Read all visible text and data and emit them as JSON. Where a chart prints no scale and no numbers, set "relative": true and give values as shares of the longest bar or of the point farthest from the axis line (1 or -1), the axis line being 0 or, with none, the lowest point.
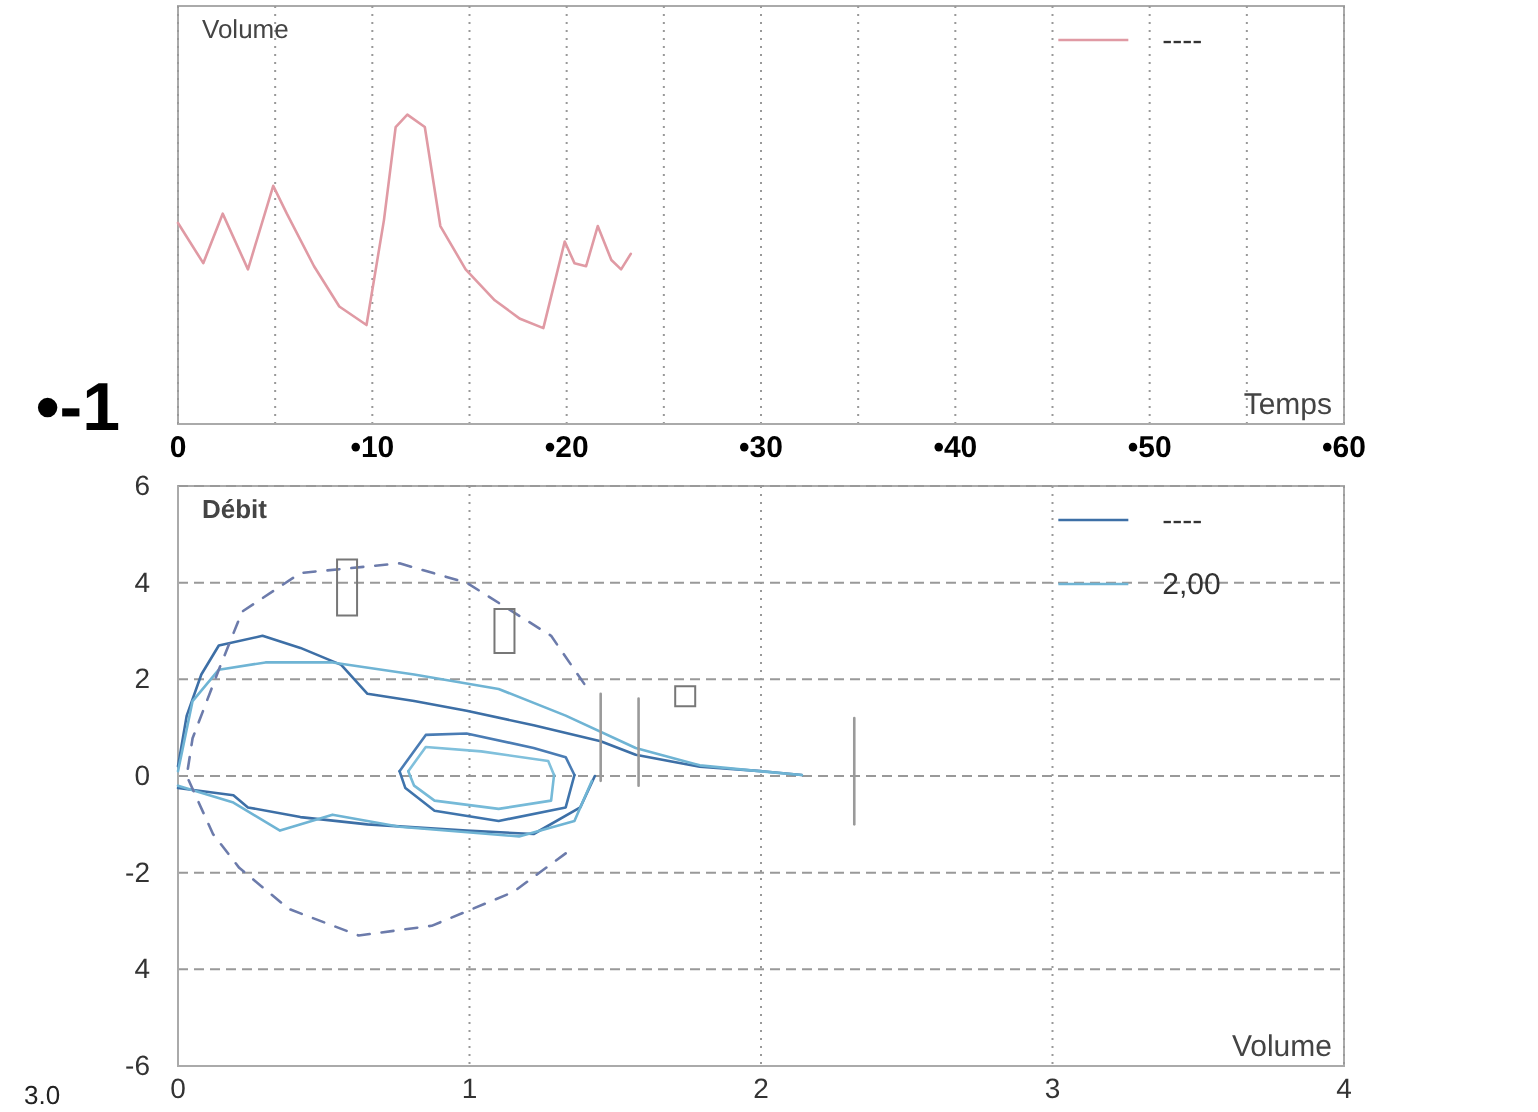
{
  "chart_data": [
    {
      "type": "line",
      "xlabel": "Temps",
      "ylabel": "Volume",
      "relative": true,
      "xlim": [
        0,
        60
      ],
      "xticks": [
        {
          "value": 0,
          "label": "0"
        },
        {
          "value": 5,
          "label": null
        },
        {
          "value": 10,
          "label": "•10"
        },
        {
          "value": 15,
          "label": null
        },
        {
          "value": 20,
          "label": "•20"
        },
        {
          "value": 25,
          "label": null
        },
        {
          "value": 30,
          "label": "•30"
        },
        {
          "value": 35,
          "label": null
        },
        {
          "value": 40,
          "label": "•40"
        },
        {
          "value": 45,
          "label": null
        },
        {
          "value": 50,
          "label": "•50"
        },
        {
          "value": 55,
          "label": null
        },
        {
          "value": 60,
          "label": "•60"
        }
      ],
      "grid": "x",
      "legend": "top right",
      "annotations": [
        "•-1"
      ],
      "series": [
        {
          "name": "----",
          "color": "#e09aa4",
          "x": [
            0,
            1.3,
            2.3,
            3.6,
            4.9,
            5.6,
            7.0,
            8.3,
            9.7,
            10.6,
            11.2,
            11.8,
            12.7,
            13.5,
            14.8,
            16.3,
            17.6,
            18.8,
            19.9,
            20.4,
            21.0,
            21.6,
            22.3,
            22.8,
            23.3
          ],
          "values": [
            0.65,
            0.52,
            0.68,
            0.5,
            0.77,
            0.68,
            0.51,
            0.38,
            0.32,
            0.66,
            0.96,
            1,
            0.96,
            0.64,
            0.5,
            0.4,
            0.34,
            0.31,
            0.59,
            0.52,
            0.51,
            0.64,
            0.53,
            0.5,
            0.55
          ]
        }
      ]
    },
    {
      "type": "line",
      "xlabel": "Volume",
      "ylabel": "Débit",
      "xlim": [
        0,
        4
      ],
      "xticks": [
        0,
        1,
        2,
        3,
        4
      ],
      "ylim": [
        -6,
        6
      ],
      "yticks": [
        -6,
        {
          "value": -4,
          "label": "4"
        },
        -2,
        0,
        2,
        4,
        6
      ],
      "grid": true,
      "legend": "top right",
      "annotations": [
        "3.0"
      ],
      "series": [
        {
          "name": "----",
          "color": "#3d6fa6",
          "x": [
            0,
            0.03,
            0.08,
            0.14,
            0.29,
            0.42,
            0.56,
            0.65,
            0.81,
            0.99,
            1.22,
            1.45,
            1.57,
            1.79,
            2.0,
            2.14,
            null,
            0,
            0.19,
            0.24,
            0.42,
            0.65,
            0.99,
            1.22,
            1.38,
            1.43
          ],
          "values": [
            0.2,
            1.25,
            2.1,
            2.7,
            2.9,
            2.65,
            2.3,
            1.7,
            1.55,
            1.35,
            1.05,
            0.72,
            0.44,
            0.19,
            0.1,
            0.02,
            null,
            -0.25,
            -0.4,
            -0.65,
            -0.85,
            -1.0,
            -1.13,
            -1.2,
            -0.65,
            0
          ]
        },
        {
          "color": "#4a7cb4",
          "x": [
            0.76,
            0.85,
            0.99,
            1.22,
            1.33,
            1.36
          ],
          "values": [
            0.1,
            0.85,
            0.88,
            0.58,
            0.39,
            0.02
          ]
        },
        {
          "color": "#3f74ac",
          "x": [
            0.76,
            0.78,
            0.88,
            1.1,
            1.33,
            1.36
          ],
          "values": [
            0.1,
            -0.25,
            -0.72,
            -0.93,
            -0.65,
            0.02
          ]
        },
        {
          "name": "2,00",
          "color": "#6fb4d4",
          "x": [
            0,
            0.05,
            0.14,
            0.3,
            0.53,
            0.81,
            1.1,
            1.33,
            1.57,
            1.79,
            2.03,
            2.14,
            null,
            0,
            0.19,
            0.35,
            0.53,
            0.76,
            1.17,
            1.36,
            1.42
          ],
          "values": [
            0.1,
            1.55,
            2.2,
            2.35,
            2.35,
            2.1,
            1.8,
            1.25,
            0.58,
            0.22,
            0.08,
            0.02,
            null,
            -0.2,
            -0.55,
            -1.13,
            -0.8,
            -1.05,
            -1.25,
            -0.93,
            -0.1
          ]
        },
        {
          "color": "#80c0dc",
          "x": [
            0.79,
            0.85,
            1.04,
            1.27,
            1.29
          ],
          "values": [
            0.1,
            0.6,
            0.51,
            0.31,
            0.02
          ]
        },
        {
          "color": "#76bad8",
          "x": [
            0.79,
            0.81,
            0.88,
            1.1,
            1.28,
            1.29
          ],
          "values": [
            0.1,
            -0.2,
            -0.51,
            -0.68,
            -0.51,
            0.02
          ]
        },
        {
          "color": "#6c7bab",
          "line_style": "dashed",
          "x": [
            0.76,
            0.99,
            1.28,
            1.4,
            null,
            1.33,
            1.15,
            0.87,
            0.62,
            0.38,
            0.21,
            0.12,
            0.03,
            0.05,
            0.14,
            0.22,
            0.42,
            0.76
          ],
          "values": [
            4.4,
            4.0,
            2.9,
            1.85,
            null,
            -1.6,
            -2.4,
            -3.1,
            -3.3,
            -2.75,
            -1.9,
            -1.2,
            0,
            0.78,
            2.2,
            3.4,
            4.2,
            4.4
          ]
        },
        {
          "color": "#9a9a9a",
          "x": [
            1.45,
            1.45
          ],
          "values": [
            -0.1,
            1.7
          ]
        },
        {
          "color": "#9a9a9a",
          "x": [
            1.58,
            1.58
          ],
          "values": [
            -0.2,
            1.6
          ]
        },
        {
          "color": "#9a9a9a",
          "x": [
            2.32,
            2.32
          ],
          "values": [
            -1.0,
            1.2
          ]
        }
      ]
    }
  ]
}
